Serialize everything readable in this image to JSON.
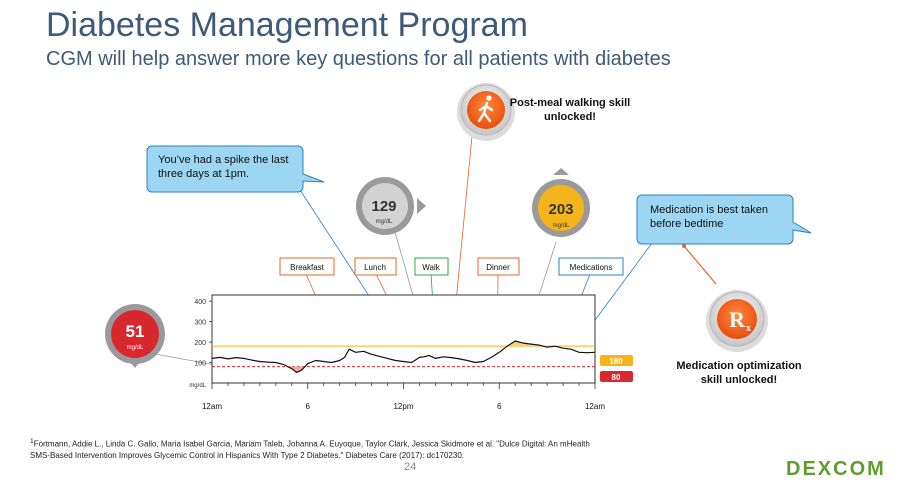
{
  "slide": {
    "title": "Diabetes Management Program",
    "subtitle": "CGM will help answer more key questions for all patients with diabetes"
  },
  "callouts": {
    "spike_bubble": "You’ve had a spike the last three days at 1pm.",
    "medication_bubble": "Medication is best taken before bedtime",
    "walking_skill": "Post-meal walking skill unlocked!",
    "medication_skill": "Medication optimization skill unlocked!"
  },
  "badges": {
    "low": {
      "value": "51",
      "unit": "mg/dL",
      "color": "#d9272e"
    },
    "mid": {
      "value": "129",
      "unit": "mg/dL",
      "color": "#c9c9c9"
    },
    "high": {
      "value": "203",
      "unit": "mg/dL",
      "color": "#f5b419"
    }
  },
  "events": [
    "Breakfast",
    "Lunch",
    "Walk",
    "Dinner",
    "Medications"
  ],
  "icons": {
    "walk": "walking-person-icon",
    "rx": "rx-prescription-icon"
  },
  "chart_data": {
    "type": "line",
    "x_tick_labels": [
      "12am",
      "6",
      "12pm",
      "6",
      "12am"
    ],
    "y_tick_labels": [
      "400",
      "300",
      "200",
      "100"
    ],
    "y_unit_label": "mg/dL",
    "ylim": [
      0,
      430
    ],
    "target_high": 180,
    "target_low": 80,
    "target_high_label": "180",
    "target_low_label": "80",
    "series": [
      {
        "x": [
          0,
          0.5,
          1,
          1.5,
          2,
          2.5,
          3,
          3.5,
          4,
          4.5,
          5,
          5.3,
          5.6,
          6,
          6.5,
          7,
          7.5,
          8,
          8.3,
          8.6,
          9,
          9.5,
          10,
          10.5,
          11,
          11.5,
          12,
          12.5,
          12.8,
          13,
          13.3,
          13.6,
          14,
          14.5,
          15,
          15.5,
          16,
          16.5,
          17,
          17.5,
          18,
          18.5,
          19,
          19.5,
          20,
          20.5,
          21,
          21.5,
          22,
          22.5,
          23,
          23.5,
          24
        ],
        "y": [
          120,
          125,
          118,
          124,
          120,
          112,
          105,
          102,
          100,
          90,
          70,
          52,
          62,
          95,
          110,
          105,
          100,
          110,
          125,
          165,
          150,
          155,
          140,
          130,
          120,
          110,
          105,
          100,
          115,
          125,
          128,
          135,
          120,
          128,
          124,
          118,
          110,
          100,
          105,
          125,
          150,
          180,
          205,
          195,
          190,
          185,
          175,
          180,
          170,
          165,
          150,
          148,
          150
        ]
      }
    ],
    "xlim": [
      0,
      24
    ]
  },
  "footnote": "Fortmann, Addie L., Linda C. Gallo, Maria Isabel Garcia, Mariam Taleb, Johanna A. Euyoque, Taylor Clark, Jessica Skidmore et al. \"Dulce Digital: An mHealth SMS-Based Intervention Improves Glycemic Control in Hispanics With Type 2 Diabetes.\" Diabetes Care (2017): dc170230.",
  "footnote_marker": "1",
  "page_number": "24",
  "logo_text": "DEXCOM"
}
